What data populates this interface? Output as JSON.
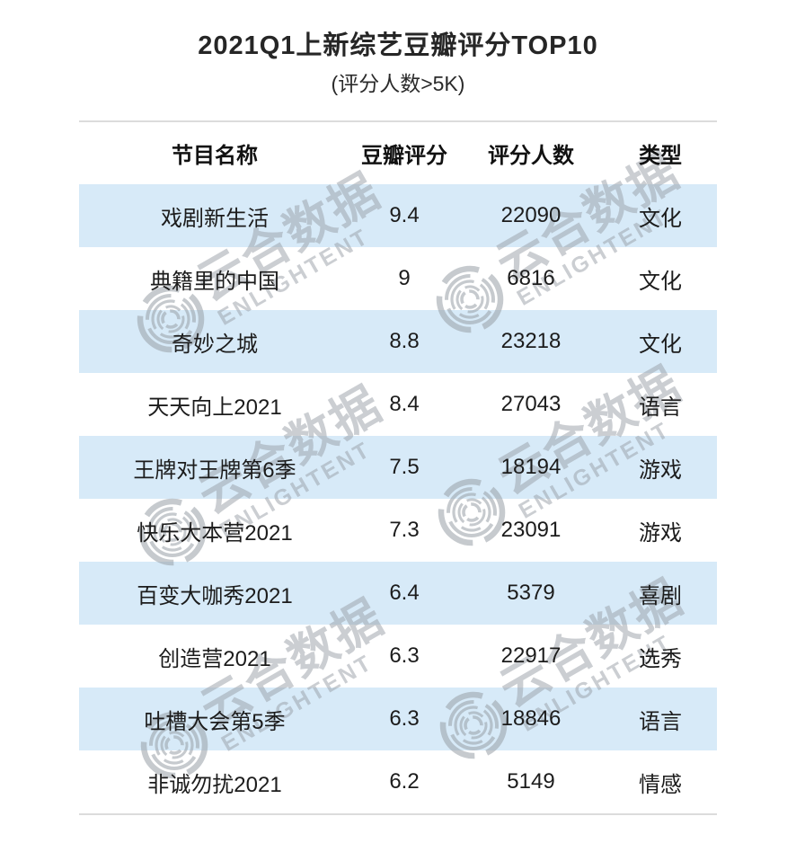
{
  "page": {
    "title": "2021Q1上新综艺豆瓣评分TOP10",
    "subtitle": "(评分人数>5K)"
  },
  "watermark": {
    "brand_cn": "云合数据",
    "brand_en": "ENLIGHTENT"
  },
  "colors": {
    "row_alt_blue": "#d7eaf8",
    "divider_gray": "#dcdcdc",
    "text_dark": "#1c1c1c",
    "watermark_gray": "#c9ccd0"
  },
  "chart_data": {
    "type": "table",
    "title": "2021Q1上新综艺豆瓣评分TOP10",
    "subtitle": "(评分人数>5K)",
    "columns": [
      "节目名称",
      "豆瓣评分",
      "评分人数",
      "类型"
    ],
    "rows": [
      [
        "戏剧新生活",
        "9.4",
        "22090",
        "文化"
      ],
      [
        "典籍里的中国",
        "9",
        "6816",
        "文化"
      ],
      [
        "奇妙之城",
        "8.8",
        "23218",
        "文化"
      ],
      [
        "天天向上2021",
        "8.4",
        "27043",
        "语言"
      ],
      [
        "王牌对王牌第6季",
        "7.5",
        "18194",
        "游戏"
      ],
      [
        "快乐大本营2021",
        "7.3",
        "23091",
        "游戏"
      ],
      [
        "百变大咖秀2021",
        "6.4",
        "5379",
        "喜剧"
      ],
      [
        "创造营2021",
        "6.3",
        "22917",
        "选秀"
      ],
      [
        "吐槽大会第5季",
        "6.3",
        "18846",
        "语言"
      ],
      [
        "非诚勿扰2021",
        "6.2",
        "5149",
        "情感"
      ]
    ],
    "layout": {
      "row_striping": "odd rows light blue",
      "alignment": "center",
      "legend": "none",
      "grid": "top and bottom divider lines only"
    }
  }
}
